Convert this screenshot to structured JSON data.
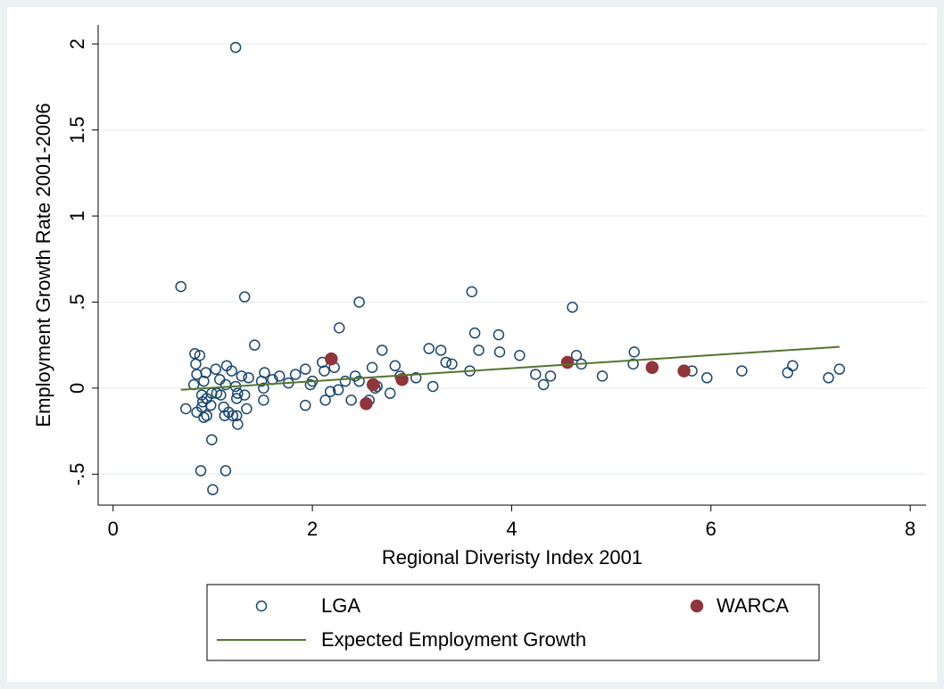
{
  "chart_data": {
    "type": "scatter",
    "x_label": "Regional Diveristy Index 2001",
    "y_label": "Employment Growth Rate 2001-2006",
    "xlim": [
      -0.15,
      8.16
    ],
    "ylim": [
      -0.68,
      2.11
    ],
    "xticks": [
      0,
      2,
      4,
      6,
      8
    ],
    "yticks": [
      {
        "value": -0.5,
        "label": "-.5"
      },
      0,
      {
        "value": 0.5,
        "label": ".5"
      },
      1,
      1.5,
      2
    ],
    "grid": true,
    "series": [
      {
        "name": "LGA",
        "color": "#1a476f",
        "kind": "hollow",
        "x": [
          1.23,
          0.68,
          1.32,
          2.47,
          3.6,
          4.61,
          2.27,
          1.42,
          3.63,
          3.87,
          2.7,
          3.17,
          3.29,
          3.67,
          3.88,
          4.08,
          4.65,
          5.23,
          0.82,
          0.87,
          0.83,
          3.34,
          3.4,
          4.7,
          5.22,
          2.83,
          2.22,
          2.1,
          2.12,
          2.6,
          1.14,
          1.19,
          1.03,
          0.93,
          1.93,
          1.52,
          1.67,
          1.83,
          3.58,
          4.24,
          4.39,
          4.91,
          5.81,
          5.96,
          6.31,
          6.77,
          6.82,
          7.18,
          7.29,
          2.88,
          3.04,
          2.43,
          2.33,
          2.47,
          1.6,
          1.49,
          1.51,
          1.76,
          1.98,
          2.0,
          0.84,
          0.81,
          0.91,
          1.07,
          1.29,
          1.36,
          1.13,
          1.23,
          3.21,
          4.32,
          2.63,
          2.65,
          2.18,
          2.26,
          2.78,
          1.04,
          1.08,
          1.25,
          1.32,
          1.24,
          0.89,
          0.94,
          0.99,
          0.9,
          1.51,
          2.13,
          2.39,
          2.57,
          0.73,
          0.84,
          0.89,
          0.98,
          1.11,
          1.34,
          1.93,
          0.94,
          0.91,
          1.12,
          1.2,
          1.24,
          1.16,
          1.25,
          0.99,
          0.88,
          1.13,
          1.0
        ],
        "values": [
          1.98,
          0.59,
          0.53,
          0.5,
          0.56,
          0.47,
          0.35,
          0.25,
          0.32,
          0.31,
          0.22,
          0.23,
          0.22,
          0.22,
          0.21,
          0.19,
          0.19,
          0.21,
          0.2,
          0.19,
          0.14,
          0.15,
          0.14,
          0.14,
          0.14,
          0.13,
          0.12,
          0.15,
          0.1,
          0.12,
          0.13,
          0.1,
          0.11,
          0.09,
          0.11,
          0.09,
          0.07,
          0.08,
          0.1,
          0.08,
          0.07,
          0.07,
          0.1,
          0.06,
          0.1,
          0.09,
          0.13,
          0.06,
          0.11,
          0.07,
          0.06,
          0.07,
          0.04,
          0.04,
          0.05,
          0.04,
          0.0,
          0.03,
          0.02,
          0.04,
          0.08,
          0.02,
          0.04,
          0.05,
          0.07,
          0.06,
          0.02,
          0.01,
          0.01,
          0.02,
          0.0,
          0.01,
          -0.02,
          -0.01,
          -0.03,
          -0.03,
          -0.04,
          -0.03,
          -0.04,
          -0.06,
          -0.04,
          -0.06,
          -0.03,
          -0.08,
          -0.07,
          -0.07,
          -0.07,
          -0.07,
          -0.12,
          -0.14,
          -0.11,
          -0.1,
          -0.11,
          -0.12,
          -0.1,
          -0.16,
          -0.17,
          -0.16,
          -0.16,
          -0.16,
          -0.14,
          -0.21,
          -0.3,
          -0.48,
          -0.48,
          -0.59
        ]
      },
      {
        "name": "WARCA",
        "color": "#90353b",
        "kind": "filled",
        "x": [
          2.19,
          2.54,
          2.61,
          2.9,
          4.56,
          5.41,
          5.73
        ],
        "values": [
          0.17,
          -0.09,
          0.02,
          0.05,
          0.15,
          0.12,
          0.1
        ]
      },
      {
        "name": "Expected Employment Growth",
        "color": "#55752f",
        "kind": "line",
        "x": [
          0.68,
          7.29
        ],
        "values": [
          -0.01,
          0.24
        ]
      }
    ]
  }
}
